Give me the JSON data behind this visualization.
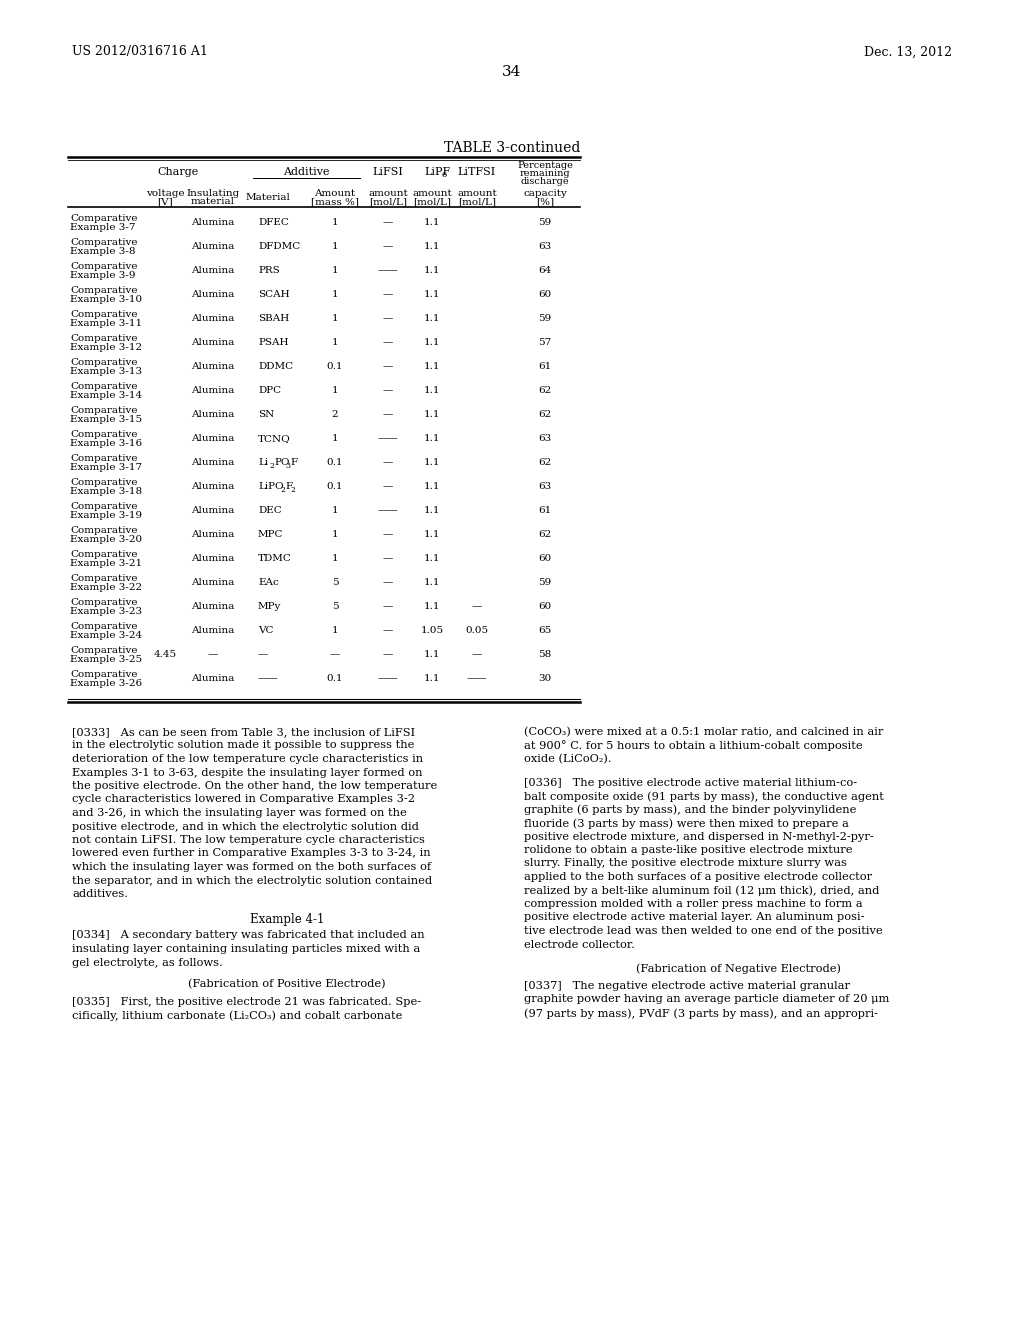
{
  "patent_number": "US 2012/0316716 A1",
  "date": "Dec. 13, 2012",
  "page_number": "34",
  "table_title": "TABLE 3-continued",
  "background_color": "#ffffff",
  "text_color": "#000000",
  "table_rows": [
    [
      "Comparative\nExample 3-7",
      "",
      "Alumina",
      "DFEC",
      "1",
      "—",
      "1.1",
      "",
      "59"
    ],
    [
      "Comparative\nExample 3-8",
      "",
      "Alumina",
      "DFDMC",
      "1",
      "—",
      "1.1",
      "",
      "63"
    ],
    [
      "Comparative\nExample 3-9",
      "",
      "Alumina",
      "PRS",
      "1",
      "——",
      "1.1",
      "",
      "64"
    ],
    [
      "Comparative\nExample 3-10",
      "",
      "Alumina",
      "SCAH",
      "1",
      "—",
      "1.1",
      "",
      "60"
    ],
    [
      "Comparative\nExample 3-11",
      "",
      "Alumina",
      "SBAH",
      "1",
      "—",
      "1.1",
      "",
      "59"
    ],
    [
      "Comparative\nExample 3-12",
      "",
      "Alumina",
      "PSAH",
      "1",
      "—",
      "1.1",
      "",
      "57"
    ],
    [
      "Comparative\nExample 3-13",
      "",
      "Alumina",
      "DDMC",
      "0.1",
      "—",
      "1.1",
      "",
      "61"
    ],
    [
      "Comparative\nExample 3-14",
      "",
      "Alumina",
      "DPC",
      "1",
      "—",
      "1.1",
      "",
      "62"
    ],
    [
      "Comparative\nExample 3-15",
      "",
      "Alumina",
      "SN",
      "2",
      "—",
      "1.1",
      "",
      "62"
    ],
    [
      "Comparative\nExample 3-16",
      "",
      "Alumina",
      "TCNQ",
      "1",
      "——",
      "1.1",
      "",
      "63"
    ],
    [
      "Comparative\nExample 3-17",
      "",
      "Alumina",
      "Li$_2$PO$_3$F",
      "0.1",
      "—",
      "1.1",
      "",
      "62"
    ],
    [
      "Comparative\nExample 3-18",
      "",
      "Alumina",
      "LiPO$_2$F$_2$",
      "0.1",
      "—",
      "1.1",
      "",
      "63"
    ],
    [
      "Comparative\nExample 3-19",
      "",
      "Alumina",
      "DEC",
      "1",
      "——",
      "1.1",
      "",
      "61"
    ],
    [
      "Comparative\nExample 3-20",
      "",
      "Alumina",
      "MPC",
      "1",
      "—",
      "1.1",
      "",
      "62"
    ],
    [
      "Comparative\nExample 3-21",
      "",
      "Alumina",
      "TDMC",
      "1",
      "—",
      "1.1",
      "",
      "60"
    ],
    [
      "Comparative\nExample 3-22",
      "",
      "Alumina",
      "EAc",
      "5",
      "—",
      "1.1",
      "",
      "59"
    ],
    [
      "Comparative\nExample 3-23",
      "",
      "Alumina",
      "MPy",
      "5",
      "—",
      "1.1",
      "—",
      "60"
    ],
    [
      "Comparative\nExample 3-24",
      "",
      "Alumina",
      "VC",
      "1",
      "—",
      "1.05",
      "0.05",
      "65"
    ],
    [
      "Comparative\nExample 3-25",
      "4.45",
      "—",
      "—",
      "—",
      "—",
      "1.1",
      "—",
      "58"
    ],
    [
      "Comparative\nExample 3-26",
      "",
      "Alumina",
      "——",
      "0.1",
      "——",
      "1.1",
      "——",
      "30"
    ]
  ]
}
